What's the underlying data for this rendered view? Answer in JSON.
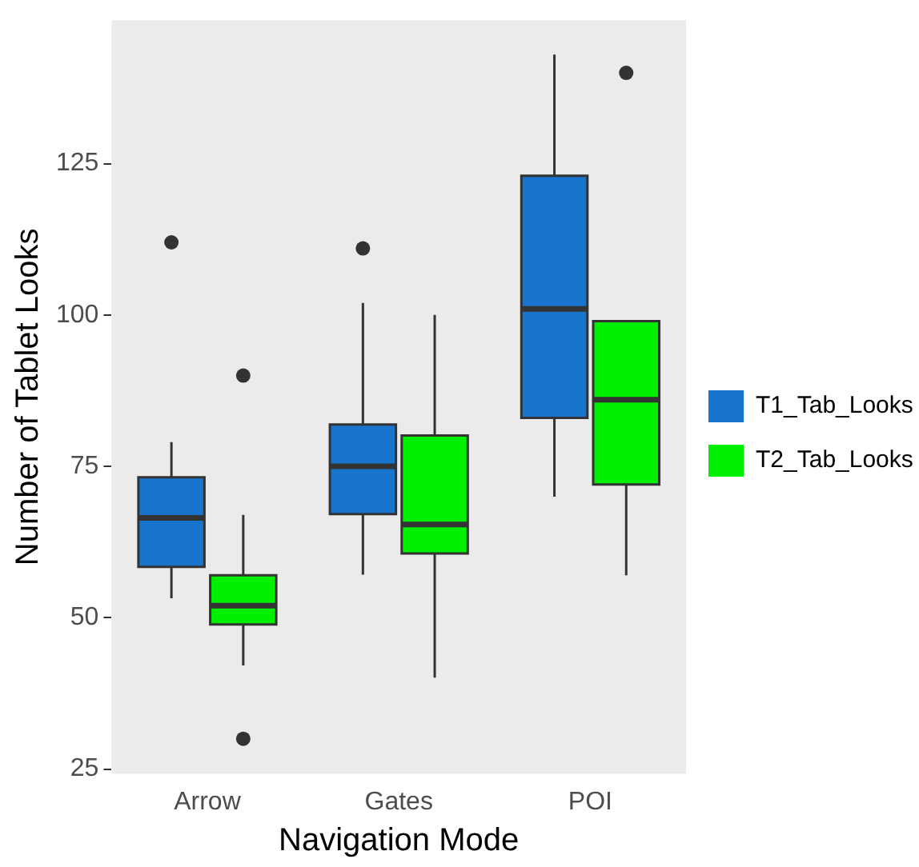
{
  "chart_data": {
    "type": "box",
    "xlabel": "Navigation Mode",
    "ylabel": "Number of Tablet Looks",
    "categories": [
      "Arrow",
      "Gates",
      "POI"
    ],
    "ylim": [
      24.2,
      148.7
    ],
    "yticks": [
      25,
      50,
      75,
      100,
      125
    ],
    "grid": false,
    "legend": "right",
    "series": [
      {
        "name": "T1_Tab_Looks",
        "color": "#1874cd",
        "boxes": [
          {
            "low": 53.2,
            "q1": 58.4,
            "median": 66.5,
            "q3": 73.2,
            "high": 79,
            "outliers": [
              112
            ]
          },
          {
            "low": 57.1,
            "q1": 67.1,
            "median": 75,
            "q3": 81.9,
            "high": 102,
            "outliers": [
              111
            ]
          },
          {
            "low": 70,
            "q1": 83,
            "median": 101,
            "q3": 123,
            "high": 143
          }
        ]
      },
      {
        "name": "T2_Tab_Looks",
        "color": "#00ee00",
        "boxes": [
          {
            "low": 42.1,
            "q1": 48.9,
            "median": 52,
            "q3": 57,
            "high": 67,
            "outliers": [
              30,
              90
            ]
          },
          {
            "low": 40.1,
            "q1": 60.6,
            "median": 65.4,
            "q3": 80.1,
            "high": 100
          },
          {
            "low": 57,
            "q1": 72,
            "median": 86,
            "q3": 99,
            "high": 99,
            "outliers": [
              140
            ]
          }
        ]
      }
    ]
  }
}
